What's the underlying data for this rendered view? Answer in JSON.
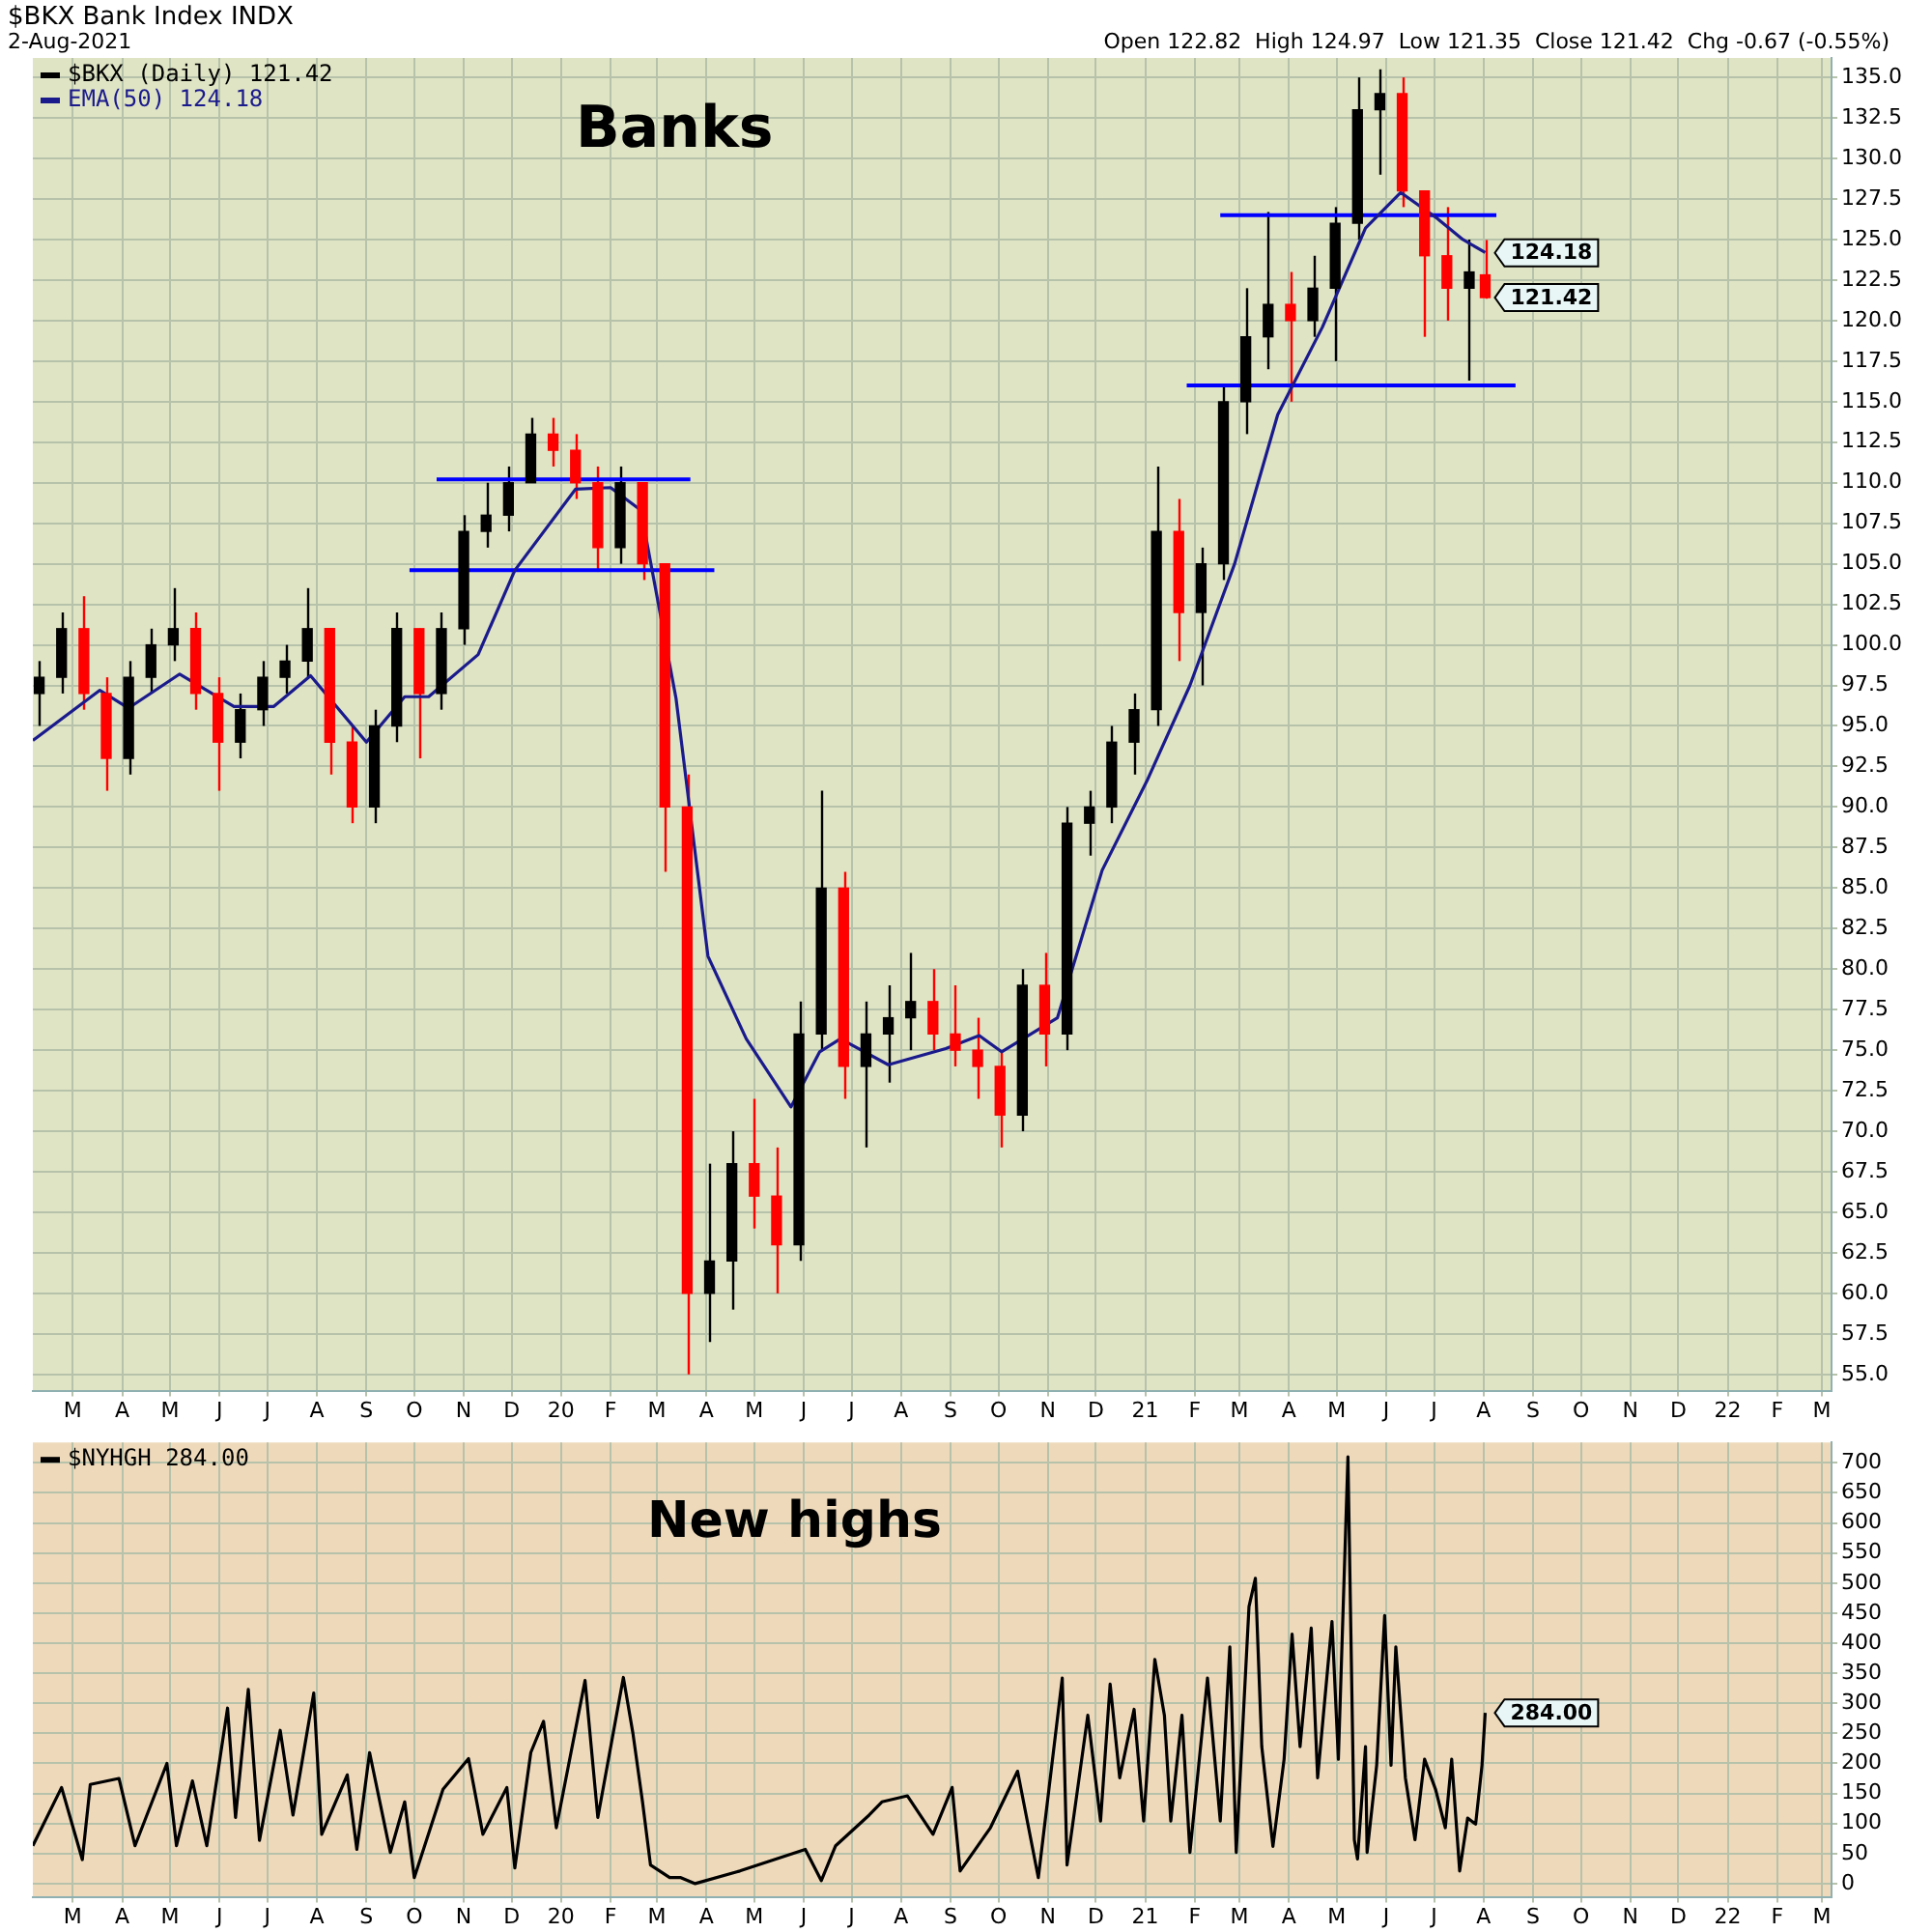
{
  "chart_data": [
    {
      "type": "candlestick",
      "title": "Banks",
      "subtitle": "$BKX Bank Index INDX",
      "annotations": [
        "2-Aug-2021",
        "Open 122.82  High 124.97  Low 121.35  Close 121.42  Chg -0.67 (-0.55%)",
        {
          "text": "124.18",
          "x": "2021-08-02",
          "y": 124.18
        },
        {
          "text": "121.42",
          "x": "2021-08-02",
          "y": 121.42
        }
      ],
      "xlim": [
        "2019-02-04",
        "2022-03-07"
      ],
      "xticks": [
        {
          "value": "2019-03-01",
          "label": "M"
        },
        {
          "value": "2019-04-01",
          "label": "A"
        },
        {
          "value": "2019-05-01",
          "label": "M"
        },
        {
          "value": "2019-06-01",
          "label": "J"
        },
        {
          "value": "2019-07-01",
          "label": "J"
        },
        {
          "value": "2019-08-01",
          "label": "A"
        },
        {
          "value": "2019-09-01",
          "label": "S"
        },
        {
          "value": "2019-10-01",
          "label": "O"
        },
        {
          "value": "2019-11-01",
          "label": "N"
        },
        {
          "value": "2019-12-01",
          "label": "D"
        },
        {
          "value": "2020-01-01",
          "label": "20"
        },
        {
          "value": "2020-02-01",
          "label": "F"
        },
        {
          "value": "2020-03-01",
          "label": "M"
        },
        {
          "value": "2020-04-01",
          "label": "A"
        },
        {
          "value": "2020-05-01",
          "label": "M"
        },
        {
          "value": "2020-06-01",
          "label": "J"
        },
        {
          "value": "2020-07-01",
          "label": "J"
        },
        {
          "value": "2020-08-01",
          "label": "A"
        },
        {
          "value": "2020-09-01",
          "label": "S"
        },
        {
          "value": "2020-10-01",
          "label": "O"
        },
        {
          "value": "2020-11-01",
          "label": "N"
        },
        {
          "value": "2020-12-01",
          "label": "D"
        },
        {
          "value": "2021-01-01",
          "label": "21"
        },
        {
          "value": "2021-02-01",
          "label": "F"
        },
        {
          "value": "2021-03-01",
          "label": "M"
        },
        {
          "value": "2021-04-01",
          "label": "A"
        },
        {
          "value": "2021-05-01",
          "label": "M"
        },
        {
          "value": "2021-06-01",
          "label": "J"
        },
        {
          "value": "2021-07-01",
          "label": "J"
        },
        {
          "value": "2021-08-01",
          "label": "A"
        },
        {
          "value": "2021-09-01",
          "label": "S"
        },
        {
          "value": "2021-10-01",
          "label": "O"
        },
        {
          "value": "2021-11-01",
          "label": "N"
        },
        {
          "value": "2021-12-01",
          "label": "D"
        },
        {
          "value": "2022-01-01",
          "label": "22"
        },
        {
          "value": "2022-02-01",
          "label": "F"
        },
        {
          "value": "2022-03-01",
          "label": "M"
        }
      ],
      "ylim": [
        54,
        136.2
      ],
      "yticks": [
        {
          "value": 55,
          "label": "55.0"
        },
        {
          "value": 57.5,
          "label": "57.5"
        },
        {
          "value": 60,
          "label": "60.0"
        },
        {
          "value": 62.5,
          "label": "62.5"
        },
        {
          "value": 65,
          "label": "65.0"
        },
        {
          "value": 67.5,
          "label": "67.5"
        },
        {
          "value": 70,
          "label": "70.0"
        },
        {
          "value": 72.5,
          "label": "72.5"
        },
        {
          "value": 75,
          "label": "75.0"
        },
        {
          "value": 77.5,
          "label": "77.5"
        },
        {
          "value": 80,
          "label": "80.0"
        },
        {
          "value": 82.5,
          "label": "82.5"
        },
        {
          "value": 85,
          "label": "85.0"
        },
        {
          "value": 87.5,
          "label": "87.5"
        },
        {
          "value": 90,
          "label": "90.0"
        },
        {
          "value": 92.5,
          "label": "92.5"
        },
        {
          "value": 95,
          "label": "95.0"
        },
        {
          "value": 97.5,
          "label": "97.5"
        },
        {
          "value": 100,
          "label": "100.0"
        },
        {
          "value": 102.5,
          "label": "102.5"
        },
        {
          "value": 105,
          "label": "105.0"
        },
        {
          "value": 107.5,
          "label": "107.5"
        },
        {
          "value": 110,
          "label": "110.0"
        },
        {
          "value": 112.5,
          "label": "112.5"
        },
        {
          "value": 115,
          "label": "115.0"
        },
        {
          "value": 117.5,
          "label": "117.5"
        },
        {
          "value": 120,
          "label": "120.0"
        },
        {
          "value": 122.5,
          "label": "122.5"
        },
        {
          "value": 125,
          "label": "125.0"
        },
        {
          "value": 127.5,
          "label": "127.5"
        },
        {
          "value": 130,
          "label": "130.0"
        },
        {
          "value": 132.5,
          "label": "132.5"
        },
        {
          "value": 135,
          "label": "135.0"
        }
      ],
      "grid": true,
      "legend": "top left",
      "series": [
        {
          "name": "$BKX (Daily) 121.42",
          "color": "#000000",
          "x": [
            "2019-02-08",
            "2019-02-22",
            "2019-03-08",
            "2019-03-22",
            "2019-04-05",
            "2019-04-19",
            "2019-05-03",
            "2019-05-17",
            "2019-05-31",
            "2019-06-14",
            "2019-06-28",
            "2019-07-12",
            "2019-07-26",
            "2019-08-09",
            "2019-08-23",
            "2019-09-06",
            "2019-09-20",
            "2019-10-04",
            "2019-10-18",
            "2019-11-01",
            "2019-11-15",
            "2019-11-29",
            "2019-12-13",
            "2019-12-27",
            "2020-01-10",
            "2020-01-24",
            "2020-02-07",
            "2020-02-21",
            "2020-03-06",
            "2020-03-20",
            "2020-04-03",
            "2020-04-17",
            "2020-05-01",
            "2020-05-15",
            "2020-05-29",
            "2020-06-12",
            "2020-06-26",
            "2020-07-10",
            "2020-07-24",
            "2020-08-07",
            "2020-08-21",
            "2020-09-04",
            "2020-09-18",
            "2020-10-02",
            "2020-10-16",
            "2020-10-30",
            "2020-11-13",
            "2020-11-27",
            "2020-12-11",
            "2020-12-25",
            "2021-01-08",
            "2021-01-22",
            "2021-02-05",
            "2021-02-19",
            "2021-03-05",
            "2021-03-19",
            "2021-04-02",
            "2021-04-16",
            "2021-04-30",
            "2021-05-14",
            "2021-05-28",
            "2021-06-11",
            "2021-06-25",
            "2021-07-09",
            "2021-07-23",
            "2021-08-02"
          ],
          "ohlc": [
            [
              97,
              99,
              95,
              98
            ],
            [
              98,
              102,
              97,
              101
            ],
            [
              101,
              103,
              96,
              97
            ],
            [
              97,
              98,
              91,
              93
            ],
            [
              93,
              99,
              92,
              98
            ],
            [
              98,
              101,
              97,
              100
            ],
            [
              100,
              103.5,
              99,
              101
            ],
            [
              101,
              102,
              96,
              97
            ],
            [
              97,
              98,
              91,
              94
            ],
            [
              94,
              97,
              93,
              96
            ],
            [
              96,
              99,
              95,
              98
            ],
            [
              98,
              100,
              97,
              99
            ],
            [
              99,
              103.5,
              98,
              101
            ],
            [
              101,
              101,
              92,
              94
            ],
            [
              94,
              95,
              89,
              90
            ],
            [
              90,
              96,
              89,
              95
            ],
            [
              95,
              102,
              94,
              101
            ],
            [
              101,
              101,
              93,
              97
            ],
            [
              97,
              102,
              96,
              101
            ],
            [
              101,
              108,
              100,
              107
            ],
            [
              107,
              110,
              106,
              108
            ],
            [
              108,
              111,
              107,
              110
            ],
            [
              110,
              114,
              110,
              113
            ],
            [
              113,
              114,
              111,
              112
            ],
            [
              112,
              113,
              109,
              110
            ],
            [
              110,
              111,
              104.5,
              106
            ],
            [
              106,
              111,
              105,
              110
            ],
            [
              110,
              110,
              104,
              105
            ],
            [
              105,
              105,
              86,
              90
            ],
            [
              90,
              92,
              55,
              60
            ],
            [
              60,
              68,
              57,
              62
            ],
            [
              62,
              70,
              59,
              68
            ],
            [
              68,
              72,
              64,
              66
            ],
            [
              66,
              69,
              60,
              63
            ],
            [
              63,
              78,
              62,
              76
            ],
            [
              76,
              91,
              75,
              85
            ],
            [
              85,
              86,
              72,
              74
            ],
            [
              74,
              78,
              69,
              76
            ],
            [
              76,
              79,
              73,
              77
            ],
            [
              77,
              81,
              75,
              78
            ],
            [
              78,
              80,
              75,
              76
            ],
            [
              76,
              79,
              74,
              75
            ],
            [
              75,
              77,
              72,
              74
            ],
            [
              74,
              75,
              69,
              71
            ],
            [
              71,
              80,
              70,
              79
            ],
            [
              79,
              81,
              74,
              76
            ],
            [
              76,
              90,
              75,
              89
            ],
            [
              89,
              91,
              87,
              90
            ],
            [
              90,
              95,
              89,
              94
            ],
            [
              94,
              97,
              92,
              96
            ],
            [
              96,
              111,
              95,
              107
            ],
            [
              107,
              109,
              99,
              102
            ],
            [
              102,
              106,
              97.5,
              105
            ],
            [
              105,
              116,
              104,
              115
            ],
            [
              115,
              122,
              113,
              119
            ],
            [
              119,
              126.7,
              117,
              121
            ],
            [
              121,
              123,
              115,
              120
            ],
            [
              120,
              124,
              119,
              122
            ],
            [
              122,
              127,
              117.5,
              126
            ],
            [
              126,
              135,
              125,
              133
            ],
            [
              133,
              135.5,
              129,
              134
            ],
            [
              134,
              135,
              127,
              128
            ],
            [
              128,
              128,
              119,
              124
            ],
            [
              124,
              127,
              120,
              122
            ],
            [
              122,
              125,
              116.3,
              123
            ],
            [
              122.82,
              124.97,
              121.35,
              121.42
            ]
          ],
          "colors": [
            "#000000",
            "#000000",
            "#ff0000",
            "#ff0000",
            "#000000",
            "#000000",
            "#000000",
            "#ff0000",
            "#ff0000",
            "#000000",
            "#000000",
            "#000000",
            "#000000",
            "#ff0000",
            "#ff0000",
            "#000000",
            "#000000",
            "#ff0000",
            "#000000",
            "#000000",
            "#000000",
            "#000000",
            "#000000",
            "#ff0000",
            "#ff0000",
            "#ff0000",
            "#000000",
            "#ff0000",
            "#ff0000",
            "#ff0000",
            "#000000",
            "#000000",
            "#ff0000",
            "#ff0000",
            "#000000",
            "#000000",
            "#ff0000",
            "#000000",
            "#000000",
            "#000000",
            "#ff0000",
            "#ff0000",
            "#ff0000",
            "#ff0000",
            "#000000",
            "#ff0000",
            "#000000",
            "#000000",
            "#000000",
            "#000000",
            "#000000",
            "#ff0000",
            "#000000",
            "#000000",
            "#000000",
            "#000000",
            "#ff0000",
            "#000000",
            "#000000",
            "#000000",
            "#000000",
            "#ff0000",
            "#ff0000",
            "#ff0000",
            "#000000",
            "#ff0000"
          ]
        },
        {
          "name": "EMA(50) 124.18",
          "type": "line",
          "color": "#1a1a8c",
          "x": [
            "2019-02-04",
            "2019-03-18",
            "2019-04-05",
            "2019-05-07",
            "2019-06-10",
            "2019-07-05",
            "2019-07-28",
            "2019-09-01",
            "2019-09-25",
            "2019-10-10",
            "2019-11-10",
            "2019-12-03",
            "2020-01-10",
            "2020-02-01",
            "2020-02-20",
            "2020-03-13",
            "2020-04-02",
            "2020-04-26",
            "2020-05-24",
            "2020-06-11",
            "2020-06-24",
            "2020-07-24",
            "2020-08-29",
            "2020-09-19",
            "2020-10-03",
            "2020-11-07",
            "2020-12-05",
            "2021-01-02",
            "2021-01-29",
            "2021-02-26",
            "2021-03-25",
            "2021-04-22",
            "2021-05-19",
            "2021-06-10",
            "2021-07-03",
            "2021-07-19",
            "2021-08-02"
          ],
          "values": [
            94.1,
            97.2,
            96.1,
            98.2,
            96.2,
            96.2,
            98.1,
            94.0,
            96.8,
            96.8,
            99.4,
            104.6,
            109.6,
            109.7,
            108.3,
            96.7,
            80.8,
            75.7,
            71.5,
            74.9,
            75.7,
            74.1,
            75.1,
            75.9,
            74.9,
            77.0,
            86.1,
            91.6,
            97.5,
            105.0,
            114.2,
            119.6,
            125.7,
            127.9,
            126.3,
            125.0,
            124.2
          ]
        },
        {
          "type": "line",
          "color": "#0000ff",
          "x": [
            "2019-10-15",
            "2020-03-22"
          ],
          "values": [
            110.2,
            110.2
          ]
        },
        {
          "type": "line",
          "color": "#0000ff",
          "x": [
            "2019-09-28",
            "2020-04-06"
          ],
          "values": [
            104.6,
            104.6
          ]
        },
        {
          "type": "line",
          "color": "#0000ff",
          "x": [
            "2021-02-17",
            "2021-08-09"
          ],
          "values": [
            126.5,
            126.5
          ]
        },
        {
          "type": "line",
          "color": "#0000ff",
          "x": [
            "2021-01-27",
            "2021-08-21"
          ],
          "values": [
            116.0,
            116.0
          ]
        }
      ]
    },
    {
      "type": "line",
      "title": "New highs",
      "annotations": [
        {
          "text": "284.00",
          "x": "2021-08-02",
          "y": 284
        }
      ],
      "xlim": [
        "2019-02-04",
        "2022-03-07"
      ],
      "xticks": [
        {
          "value": "2019-03-01",
          "label": "M"
        },
        {
          "value": "2019-04-01",
          "label": "A"
        },
        {
          "value": "2019-05-01",
          "label": "M"
        },
        {
          "value": "2019-06-01",
          "label": "J"
        },
        {
          "value": "2019-07-01",
          "label": "J"
        },
        {
          "value": "2019-08-01",
          "label": "A"
        },
        {
          "value": "2019-09-01",
          "label": "S"
        },
        {
          "value": "2019-10-01",
          "label": "O"
        },
        {
          "value": "2019-11-01",
          "label": "N"
        },
        {
          "value": "2019-12-01",
          "label": "D"
        },
        {
          "value": "2020-01-01",
          "label": "20"
        },
        {
          "value": "2020-02-01",
          "label": "F"
        },
        {
          "value": "2020-03-01",
          "label": "M"
        },
        {
          "value": "2020-04-01",
          "label": "A"
        },
        {
          "value": "2020-05-01",
          "label": "M"
        },
        {
          "value": "2020-06-01",
          "label": "J"
        },
        {
          "value": "2020-07-01",
          "label": "J"
        },
        {
          "value": "2020-08-01",
          "label": "A"
        },
        {
          "value": "2020-09-01",
          "label": "S"
        },
        {
          "value": "2020-10-01",
          "label": "O"
        },
        {
          "value": "2020-11-01",
          "label": "N"
        },
        {
          "value": "2020-12-01",
          "label": "D"
        },
        {
          "value": "2021-01-01",
          "label": "21"
        },
        {
          "value": "2021-02-01",
          "label": "F"
        },
        {
          "value": "2021-03-01",
          "label": "M"
        },
        {
          "value": "2021-04-01",
          "label": "A"
        },
        {
          "value": "2021-05-01",
          "label": "M"
        },
        {
          "value": "2021-06-01",
          "label": "J"
        },
        {
          "value": "2021-07-01",
          "label": "J"
        },
        {
          "value": "2021-08-01",
          "label": "A"
        },
        {
          "value": "2021-09-01",
          "label": "S"
        },
        {
          "value": "2021-10-01",
          "label": "O"
        },
        {
          "value": "2021-11-01",
          "label": "N"
        },
        {
          "value": "2021-12-01",
          "label": "D"
        },
        {
          "value": "2022-01-01",
          "label": "22"
        },
        {
          "value": "2022-02-01",
          "label": "F"
        },
        {
          "value": "2022-03-01",
          "label": "M"
        }
      ],
      "ylim": [
        -22,
        734
      ],
      "yticks": [
        0,
        50,
        100,
        150,
        200,
        250,
        300,
        350,
        400,
        450,
        500,
        550,
        600,
        650,
        700
      ],
      "grid": true,
      "legend": "top left",
      "series": [
        {
          "name": "$NYHGH 284.00",
          "color": "#000000",
          "x": [
            "2019-02-04",
            "2019-02-22",
            "2019-03-07",
            "2019-03-12",
            "2019-03-30",
            "2019-04-09",
            "2019-04-29",
            "2019-05-05",
            "2019-05-15",
            "2019-05-24",
            "2019-06-06",
            "2019-06-11",
            "2019-06-19",
            "2019-06-26",
            "2019-07-09",
            "2019-07-17",
            "2019-07-30",
            "2019-08-04",
            "2019-08-20",
            "2019-08-26",
            "2019-09-03",
            "2019-09-16",
            "2019-09-25",
            "2019-10-01",
            "2019-10-19",
            "2019-11-04",
            "2019-11-13",
            "2019-11-28",
            "2019-12-03",
            "2019-12-13",
            "2019-12-21",
            "2019-12-29",
            "2020-01-16",
            "2020-01-24",
            "2020-02-09",
            "2020-02-15",
            "2020-02-21",
            "2020-02-26",
            "2020-03-09",
            "2020-03-16",
            "2020-03-25",
            "2020-04-22",
            "2020-06-02",
            "2020-06-12",
            "2020-06-21",
            "2020-07-12",
            "2020-07-20",
            "2020-08-05",
            "2020-08-21",
            "2020-09-02",
            "2020-09-07",
            "2020-09-26",
            "2020-10-13",
            "2020-10-26",
            "2020-11-10",
            "2020-11-13",
            "2020-11-26",
            "2020-12-04",
            "2020-12-10",
            "2020-12-16",
            "2020-12-25",
            "2020-12-31",
            "2021-01-07",
            "2021-01-13",
            "2021-01-17",
            "2021-01-24",
            "2021-01-29",
            "2021-02-09",
            "2021-02-17",
            "2021-02-23",
            "2021-02-27",
            "2021-03-07",
            "2021-03-11",
            "2021-03-15",
            "2021-03-22",
            "2021-03-29",
            "2021-04-03",
            "2021-04-08",
            "2021-04-15",
            "2021-04-19",
            "2021-04-28",
            "2021-05-02",
            "2021-05-08",
            "2021-05-12",
            "2021-05-14",
            "2021-05-19",
            "2021-05-20",
            "2021-05-26",
            "2021-05-31",
            "2021-06-04",
            "2021-06-07",
            "2021-06-13",
            "2021-06-19",
            "2021-06-25",
            "2021-07-02",
            "2021-07-08",
            "2021-07-12",
            "2021-07-17",
            "2021-07-22",
            "2021-07-27",
            "2021-07-31",
            "2021-08-02"
          ],
          "values": [
            63,
            160,
            40,
            165,
            175,
            63,
            200,
            63,
            171,
            63,
            292,
            110,
            323,
            72,
            255,
            114,
            317,
            82,
            181,
            57,
            218,
            52,
            136,
            10,
            157,
            208,
            82,
            160,
            26,
            218,
            270,
            93,
            338,
            110,
            343,
            250,
            136,
            31,
            10,
            10,
            0,
            21,
            57,
            5,
            63,
            114,
            136,
            146,
            82,
            160,
            21,
            93,
            187,
            10,
            342,
            31,
            280,
            104,
            332,
            176,
            290,
            104,
            373,
            280,
            104,
            280,
            52,
            342,
            104,
            394,
            52,
            461,
            508,
            228,
            62,
            207,
            415,
            228,
            425,
            176,
            436,
            207,
            710,
            73,
            41,
            228,
            52,
            197,
            446,
            197,
            394,
            176,
            73,
            207,
            156,
            93,
            207,
            21,
            109,
            99,
            197,
            284
          ]
        }
      ]
    }
  ]
}
